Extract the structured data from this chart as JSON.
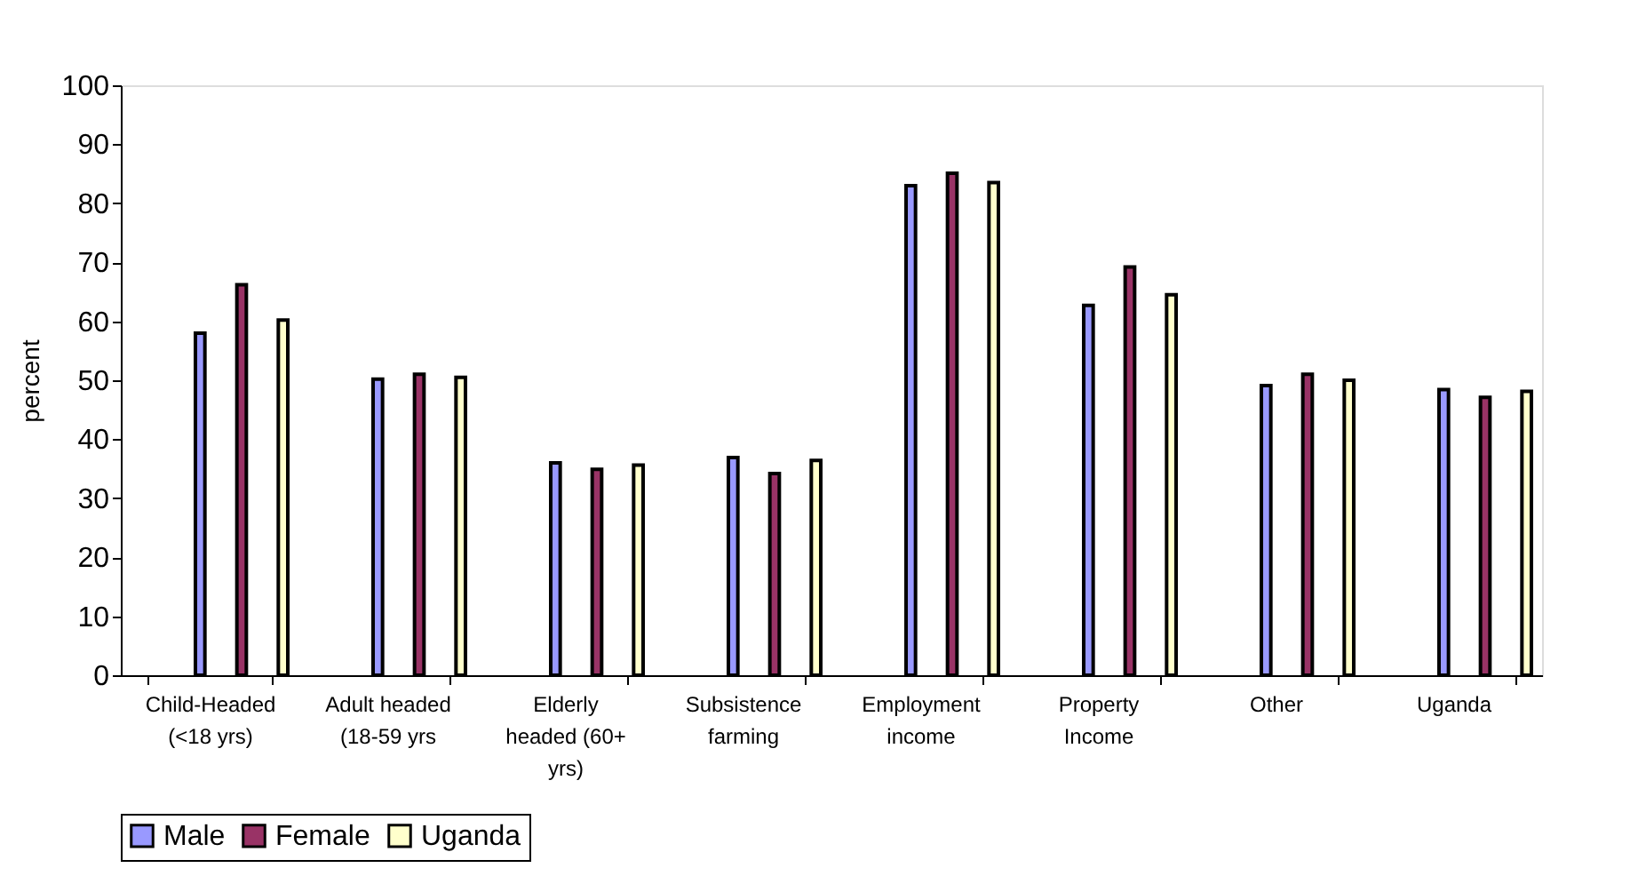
{
  "chart_data": {
    "type": "bar",
    "ylabel": "percent",
    "categories": [
      "Child-Headed (<18 yrs)",
      "Adult headed (18-59 yrs",
      "Elderly headed (60+ yrs)",
      "Subsistence farming",
      "Employment income",
      "Property Income",
      "Other",
      "Uganda"
    ],
    "series": [
      {
        "name": "Male",
        "color": "#9999ff",
        "values": [
          58.0,
          50.2,
          36.0,
          36.9,
          83.0,
          62.7,
          49.1,
          48.4
        ]
      },
      {
        "name": "Female",
        "color": "#993366",
        "values": [
          66.2,
          51.0,
          34.9,
          34.2,
          85.1,
          69.2,
          51.0,
          47.1
        ]
      },
      {
        "name": "Uganda",
        "color": "#ffffcc",
        "values": [
          60.2,
          50.5,
          35.6,
          36.4,
          83.5,
          64.5,
          50.0,
          48.1
        ]
      }
    ],
    "ylim": [
      0,
      100
    ],
    "yticks": [
      0,
      10,
      20,
      30,
      40,
      50,
      60,
      70,
      80,
      90,
      100
    ],
    "grid": false,
    "legend": "bottom"
  }
}
